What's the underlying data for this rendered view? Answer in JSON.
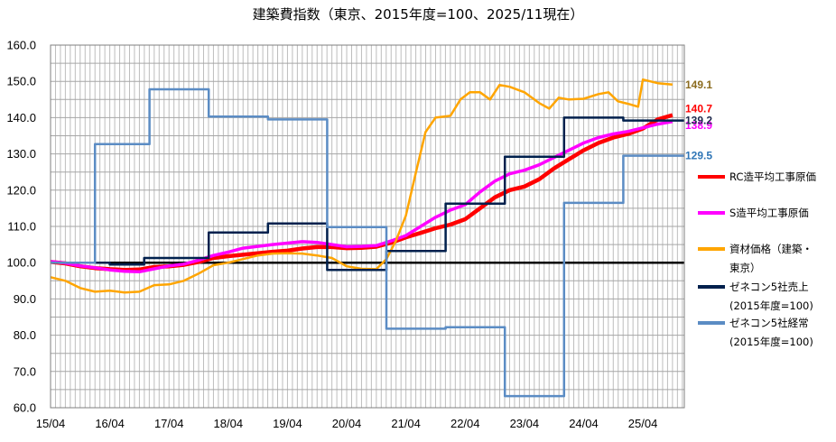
{
  "chart_data": {
    "type": "line",
    "title": "建築費指数（東京、2015年度=100、2025/11現在）",
    "xlabel": "",
    "ylabel": "",
    "ylim": [
      60,
      160
    ],
    "y_ticks": [
      "60.0",
      "70.0",
      "80.0",
      "90.0",
      "100.0",
      "110.0",
      "120.0",
      "130.0",
      "140.0",
      "150.0",
      "160.0"
    ],
    "x_ticks": [
      "15/04",
      "16/04",
      "17/04",
      "18/04",
      "19/04",
      "20/04",
      "21/04",
      "22/04",
      "23/04",
      "24/04",
      "25/04"
    ],
    "x_range_years": [
      2015.25,
      2025.95
    ],
    "grid": "monthly vertical, every 5 horizontal",
    "baseline": 100,
    "legend_position": "right",
    "series": [
      {
        "name": "RC造平均工事原価",
        "color": "#ff0000",
        "end_label": "140.7",
        "points": [
          [
            2015.25,
            100.2
          ],
          [
            2015.5,
            99.8
          ],
          [
            2015.75,
            99.0
          ],
          [
            2016.0,
            98.5
          ],
          [
            2016.25,
            98.2
          ],
          [
            2016.5,
            98.0
          ],
          [
            2016.75,
            98.1
          ],
          [
            2017.0,
            98.8
          ],
          [
            2017.25,
            99.0
          ],
          [
            2017.5,
            99.4
          ],
          [
            2017.75,
            100.2
          ],
          [
            2018.0,
            101.3
          ],
          [
            2018.25,
            101.8
          ],
          [
            2018.5,
            102.2
          ],
          [
            2018.75,
            102.6
          ],
          [
            2019.0,
            103.0
          ],
          [
            2019.25,
            103.3
          ],
          [
            2019.5,
            103.9
          ],
          [
            2019.75,
            104.3
          ],
          [
            2020.0,
            104.3
          ],
          [
            2020.25,
            104.0
          ],
          [
            2020.5,
            104.1
          ],
          [
            2020.75,
            104.4
          ],
          [
            2021.0,
            105.5
          ],
          [
            2021.25,
            107.0
          ],
          [
            2021.5,
            108.2
          ],
          [
            2021.75,
            109.5
          ],
          [
            2022.0,
            110.5
          ],
          [
            2022.25,
            112.0
          ],
          [
            2022.5,
            115.0
          ],
          [
            2022.75,
            118.0
          ],
          [
            2023.0,
            120.0
          ],
          [
            2023.25,
            121.0
          ],
          [
            2023.5,
            123.0
          ],
          [
            2023.75,
            126.0
          ],
          [
            2024.0,
            128.5
          ],
          [
            2024.25,
            131.0
          ],
          [
            2024.5,
            133.0
          ],
          [
            2024.75,
            134.5
          ],
          [
            2025.0,
            135.5
          ],
          [
            2025.25,
            137.0
          ],
          [
            2025.5,
            139.5
          ],
          [
            2025.75,
            140.7
          ]
        ]
      },
      {
        "name": "S造平均工事原価",
        "color": "#ff00ff",
        "end_label": "138.9",
        "points": [
          [
            2015.25,
            100.3
          ],
          [
            2015.5,
            99.9
          ],
          [
            2015.75,
            99.1
          ],
          [
            2016.0,
            98.6
          ],
          [
            2016.25,
            98.0
          ],
          [
            2016.5,
            97.6
          ],
          [
            2016.75,
            97.5
          ],
          [
            2017.0,
            98.3
          ],
          [
            2017.25,
            99.1
          ],
          [
            2017.5,
            99.6
          ],
          [
            2017.75,
            100.7
          ],
          [
            2018.0,
            102.0
          ],
          [
            2018.25,
            102.9
          ],
          [
            2018.5,
            104.0
          ],
          [
            2018.75,
            104.5
          ],
          [
            2019.0,
            105.0
          ],
          [
            2019.25,
            105.4
          ],
          [
            2019.5,
            105.8
          ],
          [
            2019.75,
            105.6
          ],
          [
            2020.0,
            105.0
          ],
          [
            2020.25,
            104.4
          ],
          [
            2020.5,
            104.5
          ],
          [
            2020.75,
            104.7
          ],
          [
            2021.0,
            106.0
          ],
          [
            2021.25,
            107.5
          ],
          [
            2021.5,
            110.0
          ],
          [
            2021.75,
            112.5
          ],
          [
            2022.0,
            114.5
          ],
          [
            2022.25,
            116.0
          ],
          [
            2022.5,
            119.5
          ],
          [
            2022.75,
            122.5
          ],
          [
            2023.0,
            124.5
          ],
          [
            2023.25,
            125.5
          ],
          [
            2023.5,
            127.0
          ],
          [
            2023.75,
            129.0
          ],
          [
            2024.0,
            131.0
          ],
          [
            2024.25,
            133.0
          ],
          [
            2024.5,
            134.5
          ],
          [
            2024.75,
            135.5
          ],
          [
            2025.0,
            136.2
          ],
          [
            2025.25,
            137.2
          ],
          [
            2025.5,
            138.2
          ],
          [
            2025.75,
            138.9
          ]
        ]
      },
      {
        "name": "資材価格（建築・東京）",
        "color": "#ffa500",
        "end_label": "149.1",
        "points": [
          [
            2015.25,
            96.0
          ],
          [
            2015.5,
            95.0
          ],
          [
            2015.75,
            93.0
          ],
          [
            2016.0,
            92.0
          ],
          [
            2016.25,
            92.3
          ],
          [
            2016.5,
            91.8
          ],
          [
            2016.75,
            92.0
          ],
          [
            2017.0,
            93.8
          ],
          [
            2017.25,
            94.0
          ],
          [
            2017.5,
            95.0
          ],
          [
            2017.75,
            97.0
          ],
          [
            2018.0,
            99.3
          ],
          [
            2018.25,
            100.0
          ],
          [
            2018.5,
            101.0
          ],
          [
            2018.75,
            102.0
          ],
          [
            2019.0,
            102.5
          ],
          [
            2019.25,
            102.6
          ],
          [
            2019.5,
            102.5
          ],
          [
            2019.75,
            102.0
          ],
          [
            2020.0,
            101.3
          ],
          [
            2020.25,
            99.0
          ],
          [
            2020.5,
            98.3
          ],
          [
            2020.75,
            98.2
          ],
          [
            2020.92,
            101.0
          ],
          [
            2021.08,
            106.0
          ],
          [
            2021.25,
            113.0
          ],
          [
            2021.42,
            125.0
          ],
          [
            2021.58,
            136.0
          ],
          [
            2021.75,
            140.0
          ],
          [
            2022.0,
            140.5
          ],
          [
            2022.17,
            145.0
          ],
          [
            2022.33,
            147.0
          ],
          [
            2022.5,
            147.0
          ],
          [
            2022.67,
            145.0
          ],
          [
            2022.83,
            149.0
          ],
          [
            2023.0,
            148.5
          ],
          [
            2023.25,
            147.0
          ],
          [
            2023.5,
            144.0
          ],
          [
            2023.67,
            142.5
          ],
          [
            2023.83,
            145.5
          ],
          [
            2024.0,
            145.0
          ],
          [
            2024.25,
            145.2
          ],
          [
            2024.5,
            146.5
          ],
          [
            2024.67,
            147.0
          ],
          [
            2024.83,
            144.5
          ],
          [
            2025.0,
            143.8
          ],
          [
            2025.17,
            143.0
          ],
          [
            2025.25,
            150.5
          ],
          [
            2025.5,
            149.5
          ],
          [
            2025.75,
            149.1
          ]
        ]
      },
      {
        "name": "ゼネコン5社売上(2015年度=100)",
        "color": "#00204d",
        "end_label": "139.2",
        "points": [
          [
            2015.25,
            100.0
          ],
          [
            2016.25,
            100.0
          ],
          [
            2016.25,
            99.5
          ],
          [
            2016.83,
            99.5
          ],
          [
            2016.83,
            101.3
          ],
          [
            2017.92,
            101.3
          ],
          [
            2017.92,
            108.3
          ],
          [
            2018.92,
            108.3
          ],
          [
            2018.92,
            110.8
          ],
          [
            2019.92,
            110.8
          ],
          [
            2019.92,
            98.0
          ],
          [
            2020.92,
            98.0
          ],
          [
            2020.92,
            103.2
          ],
          [
            2021.92,
            103.2
          ],
          [
            2021.92,
            116.3
          ],
          [
            2022.92,
            116.3
          ],
          [
            2022.92,
            129.2
          ],
          [
            2023.92,
            129.2
          ],
          [
            2023.92,
            140.0
          ],
          [
            2024.92,
            140.0
          ],
          [
            2024.92,
            139.2
          ],
          [
            2025.95,
            139.2
          ]
        ]
      },
      {
        "name": "ゼネコン5社経常(2015年度=100)",
        "color": "#5b8cc4",
        "end_label": "129.5",
        "points": [
          [
            2015.25,
            100.0
          ],
          [
            2016.0,
            100.0
          ],
          [
            2016.0,
            132.7
          ],
          [
            2016.92,
            132.7
          ],
          [
            2016.92,
            147.8
          ],
          [
            2017.92,
            147.8
          ],
          [
            2017.92,
            140.3
          ],
          [
            2018.92,
            140.3
          ],
          [
            2018.92,
            139.5
          ],
          [
            2019.92,
            139.5
          ],
          [
            2019.92,
            109.8
          ],
          [
            2020.92,
            109.8
          ],
          [
            2020.92,
            81.8
          ],
          [
            2021.92,
            81.8
          ],
          [
            2021.92,
            82.2
          ],
          [
            2022.92,
            82.2
          ],
          [
            2022.92,
            63.2
          ],
          [
            2023.92,
            63.2
          ],
          [
            2023.92,
            116.5
          ],
          [
            2024.92,
            116.5
          ],
          [
            2024.92,
            129.5
          ],
          [
            2025.95,
            129.5
          ]
        ]
      }
    ]
  },
  "legend": {
    "items": [
      {
        "lines": [
          "RC造平均工事原価"
        ],
        "color": "#ff0000"
      },
      {
        "lines": [
          "S造平均工事原価"
        ],
        "color": "#ff00ff"
      },
      {
        "lines": [
          "資材価格（建築・",
          "東京）"
        ],
        "color": "#ffa500"
      },
      {
        "lines": [
          "ゼネコン5社売上",
          "(2015年度=100)"
        ],
        "color": "#00204d"
      },
      {
        "lines": [
          "ゼネコン5社経常",
          "(2015年度=100)"
        ],
        "color": "#5b8cc4"
      }
    ]
  }
}
